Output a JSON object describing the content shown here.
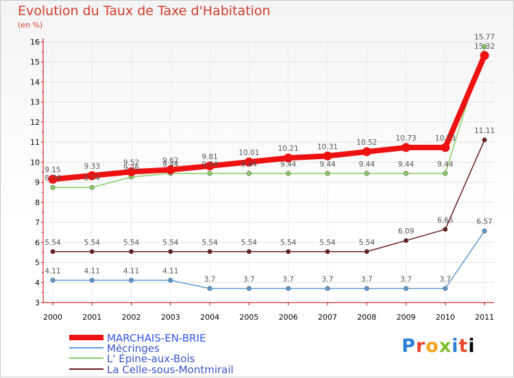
{
  "chart_data": {
    "type": "line",
    "title": "Evolution du Taux de Taxe d'Habitation",
    "unit_label": "(en %)",
    "xlabel": "",
    "ylabel": "",
    "ylim": [
      3,
      16
    ],
    "y_ticks": [
      3,
      4,
      5,
      6,
      7,
      8,
      9,
      10,
      11,
      12,
      13,
      14,
      15,
      16
    ],
    "categories": [
      "2000",
      "2001",
      "2002",
      "2003",
      "2004",
      "2005",
      "2006",
      "2007",
      "2008",
      "2009",
      "2010",
      "2011"
    ],
    "legend_position": "bottom-left",
    "series": [
      {
        "name": "MARCHAIS-EN-BRIE",
        "color": "#ee1111",
        "values": [
          9.15,
          9.33,
          9.52,
          9.62,
          9.81,
          10.01,
          10.21,
          10.31,
          10.52,
          10.73,
          10.73,
          15.32
        ],
        "labels": [
          "9.15",
          "9.33",
          "9.52",
          "9.62",
          "9.81",
          "10.01",
          "10.21",
          "10.31",
          "10.52",
          "10.73",
          "10.73",
          "15.32"
        ]
      },
      {
        "name": "Mécringes",
        "color": "#5b9bd5",
        "values": [
          4.11,
          4.11,
          4.11,
          4.11,
          3.7,
          3.7,
          3.7,
          3.7,
          3.7,
          3.7,
          3.7,
          6.57
        ],
        "labels": [
          "4.11",
          "4.11",
          "4.11",
          "4.11",
          "3.7",
          "3.7",
          "3.7",
          "3.7",
          "3.7",
          "3.7",
          "3.7",
          "6.57"
        ]
      },
      {
        "name": "L' Épine-aux-Bois",
        "color": "#88d060",
        "values": [
          8.74,
          8.74,
          9.26,
          9.44,
          9.44,
          9.44,
          9.44,
          9.44,
          9.44,
          9.44,
          9.44,
          15.77
        ],
        "labels": [
          "8.74",
          "8.74",
          "9.26",
          "9.44",
          "9.44",
          "9.44",
          "9.44",
          "9.44",
          "9.44",
          "9.44",
          "9.44",
          "15.77"
        ]
      },
      {
        "name": "La Celle-sous-Montmirail",
        "color": "#6b1c1c",
        "values": [
          5.54,
          5.54,
          5.54,
          5.54,
          5.54,
          5.54,
          5.54,
          5.54,
          5.54,
          6.09,
          6.65,
          11.11
        ],
        "labels": [
          "5.54",
          "5.54",
          "5.54",
          "5.54",
          "5.54",
          "5.54",
          "5.54",
          "5.54",
          "5.54",
          "6.09",
          "6.65",
          "11.11"
        ]
      }
    ]
  },
  "logo": {
    "letters": [
      "P",
      "r",
      "o",
      "x",
      "i",
      "t",
      "i"
    ]
  }
}
